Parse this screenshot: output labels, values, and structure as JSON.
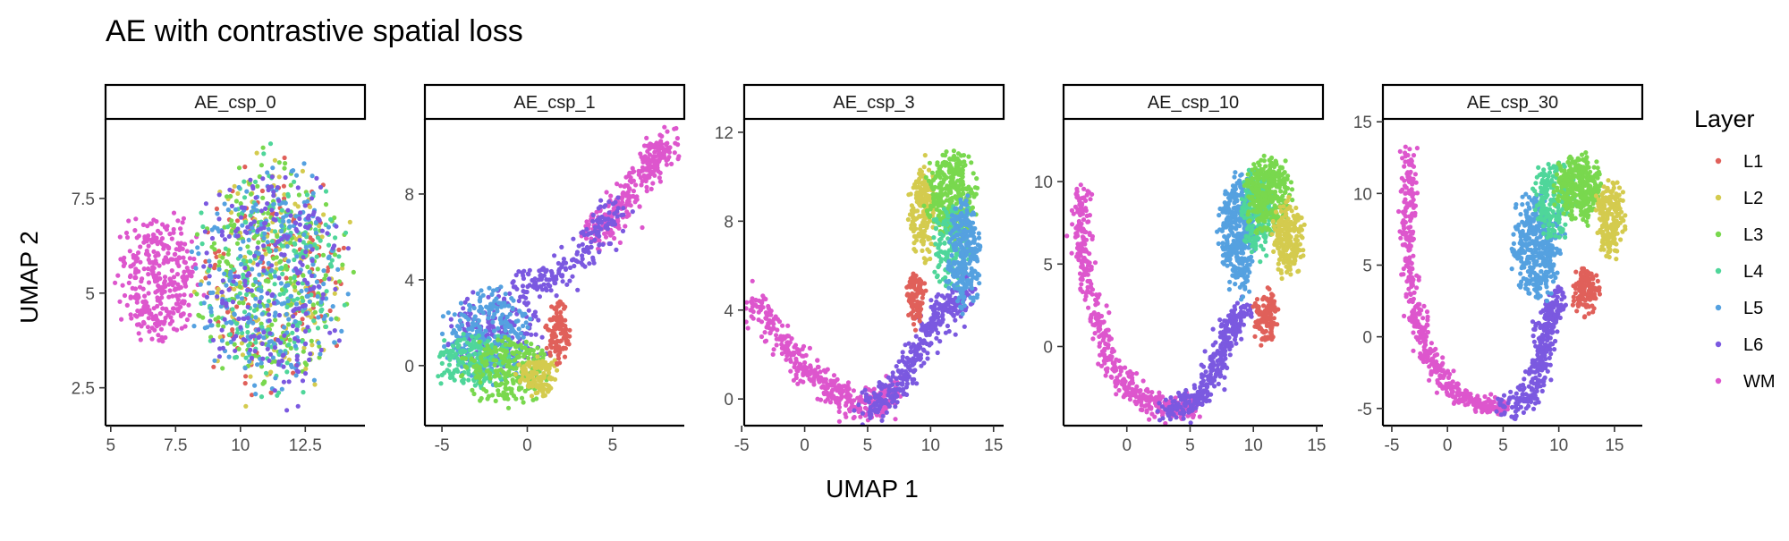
{
  "chart_data": {
    "type": "scatter",
    "title": "AE with contrastive spatial loss",
    "xlabel": "UMAP 1",
    "ylabel": "UMAP 2",
    "legend": {
      "title": "Layer",
      "placement": "right",
      "entries": [
        {
          "label": "L1",
          "color": "#e0605a"
        },
        {
          "label": "L2",
          "color": "#d4cb4e"
        },
        {
          "label": "L3",
          "color": "#79d84e"
        },
        {
          "label": "L4",
          "color": "#4fd69a"
        },
        {
          "label": "L5",
          "color": "#55a1e0"
        },
        {
          "label": "L6",
          "color": "#7b59e0"
        },
        {
          "label": "WM",
          "color": "#dd56cd"
        }
      ]
    },
    "panels": [
      {
        "label": "AE_csp_0",
        "xlim": [
          4.8,
          14.8
        ],
        "ylim": [
          1.5,
          9.6
        ],
        "xticks": [
          {
            "v": 5,
            "t": "5"
          },
          {
            "v": 7.5,
            "t": "7.5"
          },
          {
            "v": 10,
            "t": "10"
          },
          {
            "v": 12.5,
            "t": "12.5"
          }
        ],
        "yticks": [
          {
            "v": 2.5,
            "t": "2.5"
          },
          {
            "v": 5,
            "t": "5"
          },
          {
            "v": 7.5,
            "t": "7.5"
          }
        ],
        "clusters": [
          {
            "layer": "WM",
            "type": "blob",
            "cx": 6.9,
            "cy": 5.4,
            "rx": 1.9,
            "ry": 2.0,
            "n": 340
          },
          {
            "layer": "L1",
            "type": "blob",
            "cx": 11.2,
            "cy": 5.4,
            "rx": 3.4,
            "ry": 3.6,
            "n": 150
          },
          {
            "layer": "L2",
            "type": "blob",
            "cx": 11.2,
            "cy": 5.4,
            "rx": 3.4,
            "ry": 3.6,
            "n": 150
          },
          {
            "layer": "L3",
            "type": "blob",
            "cx": 11.2,
            "cy": 5.4,
            "rx": 3.4,
            "ry": 3.6,
            "n": 250
          },
          {
            "layer": "L4",
            "type": "blob",
            "cx": 11.2,
            "cy": 5.4,
            "rx": 3.4,
            "ry": 3.6,
            "n": 200
          },
          {
            "layer": "L5",
            "type": "blob",
            "cx": 11.2,
            "cy": 5.4,
            "rx": 3.4,
            "ry": 3.6,
            "n": 250
          },
          {
            "layer": "L6",
            "type": "blob",
            "cx": 11.2,
            "cy": 5.4,
            "rx": 3.4,
            "ry": 3.6,
            "n": 230
          }
        ]
      },
      {
        "label": "AE_csp_1",
        "xlim": [
          -6,
          9.2
        ],
        "ylim": [
          -2.8,
          11.5
        ],
        "xticks": [
          {
            "v": -5,
            "t": "-5"
          },
          {
            "v": 0,
            "t": "0"
          },
          {
            "v": 5,
            "t": "5"
          }
        ],
        "yticks": [
          {
            "v": 0,
            "t": "0"
          },
          {
            "v": 4,
            "t": "4"
          },
          {
            "v": 8,
            "t": "8"
          }
        ],
        "clusters": [
          {
            "layer": "WM",
            "type": "path",
            "points": [
              [
                3.8,
                6.2
              ],
              [
                5.5,
                7.4
              ],
              [
                7.4,
                9.5
              ],
              [
                8.2,
                10.4
              ]
            ],
            "width": 1.0,
            "n": 300
          },
          {
            "layer": "L6",
            "type": "path",
            "points": [
              [
                -0.5,
                3.6
              ],
              [
                2.0,
                4.2
              ],
              [
                3.8,
                5.9
              ],
              [
                5.3,
                7.3
              ]
            ],
            "width": 0.9,
            "n": 180
          },
          {
            "layer": "L6",
            "type": "blob",
            "cx": -1.6,
            "cy": 1.6,
            "rx": 3.4,
            "ry": 2.6,
            "n": 180
          },
          {
            "layer": "L5",
            "type": "blob",
            "cx": -2.3,
            "cy": 1.4,
            "rx": 3.0,
            "ry": 2.6,
            "n": 260
          },
          {
            "layer": "L4",
            "type": "blob",
            "cx": -3.2,
            "cy": 0.2,
            "rx": 2.6,
            "ry": 1.6,
            "n": 180
          },
          {
            "layer": "L3",
            "type": "blob",
            "cx": -1.2,
            "cy": -0.2,
            "rx": 3.0,
            "ry": 1.8,
            "n": 240
          },
          {
            "layer": "L2",
            "type": "blob",
            "cx": 0.6,
            "cy": -0.5,
            "rx": 1.4,
            "ry": 1.3,
            "n": 120
          },
          {
            "layer": "L1",
            "type": "blob",
            "cx": 1.8,
            "cy": 1.6,
            "rx": 0.8,
            "ry": 1.8,
            "n": 110
          }
        ]
      },
      {
        "label": "AE_csp_3",
        "xlim": [
          -4.8,
          15.8
        ],
        "ylim": [
          -1.2,
          12.6
        ],
        "xticks": [
          {
            "v": -5,
            "t": "-5"
          },
          {
            "v": 0,
            "t": "0"
          },
          {
            "v": 5,
            "t": "5"
          },
          {
            "v": 10,
            "t": "10"
          },
          {
            "v": 15,
            "t": "15"
          }
        ],
        "yticks": [
          {
            "v": 0,
            "t": "0"
          },
          {
            "v": 4,
            "t": "4"
          },
          {
            "v": 8,
            "t": "8"
          },
          {
            "v": 12,
            "t": "12"
          }
        ],
        "clusters": [
          {
            "layer": "WM",
            "type": "path",
            "points": [
              [
                -4.2,
                4.4
              ],
              [
                -2,
                2.8
              ],
              [
                0,
                1.4
              ],
              [
                2,
                0.4
              ],
              [
                4,
                -0.3
              ],
              [
                6,
                -0.2
              ],
              [
                7.5,
                0.5
              ]
            ],
            "width": 0.8,
            "n": 420
          },
          {
            "layer": "L6",
            "type": "path",
            "points": [
              [
                4.5,
                -0.4
              ],
              [
                6.5,
                0
              ],
              [
                8,
                0.9
              ],
              [
                9,
                2.0
              ],
              [
                10,
                3.4
              ],
              [
                11.5,
                4.2
              ],
              [
                13,
                4.8
              ]
            ],
            "width": 1.0,
            "n": 340
          },
          {
            "layer": "L1",
            "type": "blob",
            "cx": 8.8,
            "cy": 4.6,
            "rx": 0.9,
            "ry": 1.6,
            "n": 100
          },
          {
            "layer": "L2",
            "type": "blob",
            "cx": 9.4,
            "cy": 8.5,
            "rx": 1.3,
            "ry": 2.6,
            "n": 180
          },
          {
            "layer": "L3",
            "type": "blob",
            "cx": 11.6,
            "cy": 9.2,
            "rx": 2.3,
            "ry": 2.4,
            "n": 320
          },
          {
            "layer": "L4",
            "type": "blob",
            "cx": 11.8,
            "cy": 7.0,
            "rx": 2.0,
            "ry": 2.4,
            "n": 150
          },
          {
            "layer": "L5",
            "type": "blob",
            "cx": 12.6,
            "cy": 6.4,
            "rx": 1.6,
            "ry": 3.0,
            "n": 260
          }
        ]
      },
      {
        "label": "AE_csp_10",
        "xlim": [
          -5,
          15.5
        ],
        "ylim": [
          -4.8,
          13.8
        ],
        "xticks": [
          {
            "v": 0,
            "t": "0"
          },
          {
            "v": 5,
            "t": "5"
          },
          {
            "v": 10,
            "t": "10"
          },
          {
            "v": 15,
            "t": "15"
          }
        ],
        "yticks": [
          {
            "v": 0,
            "t": "0"
          },
          {
            "v": 5,
            "t": "5"
          },
          {
            "v": 10,
            "t": "10"
          }
        ],
        "clusters": [
          {
            "layer": "WM",
            "type": "path",
            "points": [
              [
                -3.6,
                9.6
              ],
              [
                -3.6,
                6
              ],
              [
                -2.5,
                2
              ],
              [
                -1,
                -1.5
              ],
              [
                1,
                -3.2
              ],
              [
                3.5,
                -3.8
              ],
              [
                5.5,
                -3.5
              ]
            ],
            "width": 0.8,
            "n": 480
          },
          {
            "layer": "L6",
            "type": "path",
            "points": [
              [
                3,
                -3.9
              ],
              [
                5.5,
                -3.4
              ],
              [
                7,
                -1.6
              ],
              [
                8,
                1.0
              ],
              [
                9.5,
                2.6
              ]
            ],
            "width": 1.0,
            "n": 320
          },
          {
            "layer": "L5",
            "type": "blob",
            "cx": 8.8,
            "cy": 6.8,
            "rx": 1.7,
            "ry": 4.2,
            "n": 360
          },
          {
            "layer": "L4",
            "type": "blob",
            "cx": 10.4,
            "cy": 8.2,
            "rx": 1.6,
            "ry": 3.4,
            "n": 180
          },
          {
            "layer": "L3",
            "type": "blob",
            "cx": 11.2,
            "cy": 9.2,
            "rx": 2.2,
            "ry": 2.8,
            "n": 300
          },
          {
            "layer": "L2",
            "type": "blob",
            "cx": 12.8,
            "cy": 6.6,
            "rx": 1.5,
            "ry": 3.0,
            "n": 200
          },
          {
            "layer": "L1",
            "type": "blob",
            "cx": 11.0,
            "cy": 1.8,
            "rx": 1.2,
            "ry": 2.0,
            "n": 120
          }
        ]
      },
      {
        "label": "AE_csp_30",
        "xlim": [
          -5.8,
          17.5
        ],
        "ylim": [
          -6.2,
          15.2
        ],
        "xticks": [
          {
            "v": -5,
            "t": "-5"
          },
          {
            "v": 0,
            "t": "0"
          },
          {
            "v": 5,
            "t": "5"
          },
          {
            "v": 10,
            "t": "10"
          },
          {
            "v": 15,
            "t": "15"
          }
        ],
        "yticks": [
          {
            "v": -5,
            "t": "-5"
          },
          {
            "v": 0,
            "t": "0"
          },
          {
            "v": 5,
            "t": "5"
          },
          {
            "v": 10,
            "t": "10"
          },
          {
            "v": 15,
            "t": "15"
          }
        ],
        "clusters": [
          {
            "layer": "WM",
            "type": "path",
            "points": [
              [
                -3.4,
                13.3
              ],
              [
                -3.6,
                8
              ],
              [
                -3.2,
                3
              ],
              [
                -2,
                -1
              ],
              [
                0,
                -3.5
              ],
              [
                3,
                -4.8
              ],
              [
                5.5,
                -4.8
              ]
            ],
            "width": 0.8,
            "n": 480
          },
          {
            "layer": "L6",
            "type": "path",
            "points": [
              [
                5,
                -5
              ],
              [
                7.5,
                -4.2
              ],
              [
                8.5,
                -1.5
              ],
              [
                9,
                1.0
              ],
              [
                10,
                2.8
              ]
            ],
            "width": 1.1,
            "n": 320
          },
          {
            "layer": "L5",
            "type": "blob",
            "cx": 8.0,
            "cy": 6.4,
            "rx": 2.6,
            "ry": 4.4,
            "n": 380
          },
          {
            "layer": "L4",
            "type": "blob",
            "cx": 9.6,
            "cy": 9.6,
            "rx": 2.2,
            "ry": 3.2,
            "n": 200
          },
          {
            "layer": "L3",
            "type": "blob",
            "cx": 11.8,
            "cy": 10.4,
            "rx": 2.6,
            "ry": 2.8,
            "n": 320
          },
          {
            "layer": "L2",
            "type": "blob",
            "cx": 14.6,
            "cy": 8.2,
            "rx": 1.5,
            "ry": 3.2,
            "n": 200
          },
          {
            "layer": "L1",
            "type": "blob",
            "cx": 12.4,
            "cy": 3.2,
            "rx": 1.4,
            "ry": 2.0,
            "n": 130
          }
        ]
      }
    ]
  }
}
